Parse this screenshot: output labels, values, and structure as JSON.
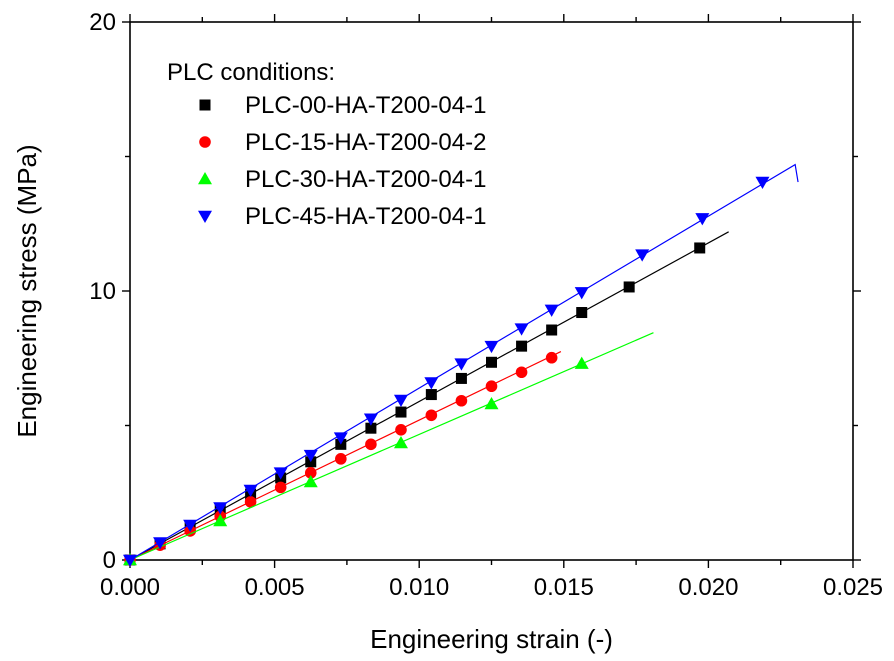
{
  "chart_data": {
    "type": "scatter",
    "title": "",
    "xlabel": "Engineering strain (-)",
    "ylabel": "Engineering stress (MPa)",
    "xlim": [
      0,
      0.025
    ],
    "ylim": [
      0,
      20
    ],
    "xticks": [
      "0.000",
      "0.005",
      "0.010",
      "0.015",
      "0.020",
      "0.025"
    ],
    "yticks": [
      "0",
      "10",
      "20"
    ],
    "xtick_values": [
      0,
      0.005,
      0.01,
      0.015,
      0.02,
      0.025
    ],
    "ytick_values": [
      0,
      10,
      20
    ],
    "grid": false,
    "legend": {
      "title": "PLC conditions:",
      "placement": "top-left"
    },
    "series": [
      {
        "name": "PLC-00-HA-T200-04-1",
        "color": "#000000",
        "marker": "square",
        "line_end": [
          0.0207,
          12.2
        ],
        "x": [
          0,
          0.00104,
          0.00208,
          0.00312,
          0.00417,
          0.00521,
          0.00625,
          0.00729,
          0.00833,
          0.00937,
          0.01042,
          0.01146,
          0.0125,
          0.01354,
          0.01458,
          0.01562,
          0.01726,
          0.0197
        ],
        "y": [
          0,
          0.6,
          1.2,
          1.85,
          2.45,
          3.05,
          3.65,
          4.3,
          4.9,
          5.5,
          6.15,
          6.75,
          7.35,
          7.95,
          8.55,
          9.2,
          10.15,
          11.6
        ]
      },
      {
        "name": "PLC-15-HA-T200-04-2",
        "color": "#ff0000",
        "marker": "circle",
        "line_end": [
          0.0149,
          7.75
        ],
        "x": [
          0,
          0.00104,
          0.00208,
          0.00312,
          0.00417,
          0.00521,
          0.00625,
          0.00729,
          0.00833,
          0.00937,
          0.01042,
          0.01146,
          0.0125,
          0.01354,
          0.01458
        ],
        "y": [
          0,
          0.55,
          1.08,
          1.62,
          2.16,
          2.7,
          3.24,
          3.76,
          4.3,
          4.84,
          5.38,
          5.92,
          6.46,
          6.98,
          7.52
        ]
      },
      {
        "name": "PLC-30-HA-T200-04-1",
        "color": "#00ff00",
        "marker": "triangle-up",
        "line_end": [
          0.0181,
          8.45
        ],
        "x": [
          0,
          0.00312,
          0.00625,
          0.00937,
          0.0125,
          0.01562
        ],
        "y": [
          0,
          1.45,
          2.9,
          4.35,
          5.8,
          7.3
        ]
      },
      {
        "name": "PLC-45-HA-T200-04-1",
        "color": "#0000ff",
        "marker": "triangle-down",
        "line_end": [
          0.023,
          14.7
        ],
        "tail_end": [
          0.0231,
          14.05
        ],
        "x": [
          0,
          0.00104,
          0.00208,
          0.00312,
          0.00417,
          0.00521,
          0.00625,
          0.00729,
          0.00833,
          0.00937,
          0.01042,
          0.01146,
          0.0125,
          0.01354,
          0.01458,
          0.01562,
          0.01771,
          0.01979,
          0.02187
        ],
        "y": [
          0,
          0.65,
          1.3,
          1.95,
          2.6,
          3.25,
          3.9,
          4.55,
          5.25,
          5.95,
          6.6,
          7.3,
          7.95,
          8.6,
          9.3,
          9.95,
          11.35,
          12.7,
          14.05
        ]
      }
    ]
  }
}
